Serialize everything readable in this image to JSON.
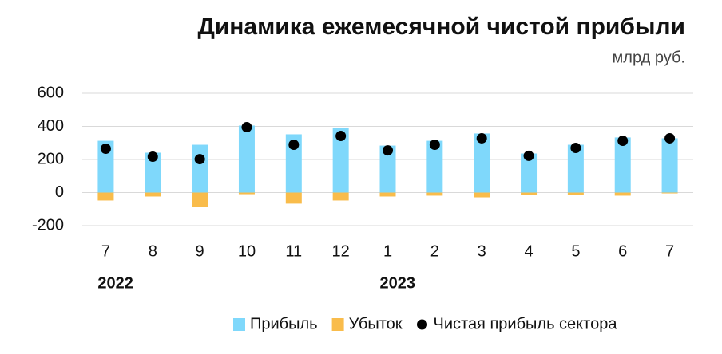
{
  "chart_data": {
    "type": "bar",
    "title": "Динамика ежемесячной чистой прибыли",
    "subtitle": "млрд руб.",
    "categories": [
      "7",
      "8",
      "9",
      "10",
      "11",
      "12",
      "1",
      "2",
      "3",
      "4",
      "5",
      "6",
      "7"
    ],
    "years": [
      "2022",
      null,
      null,
      null,
      null,
      null,
      "2023",
      null,
      null,
      null,
      null,
      null,
      null
    ],
    "series": [
      {
        "name": "Прибыль",
        "color": "#7fd8fb",
        "mark": "bar",
        "values": [
          313,
          241,
          289,
          405,
          352,
          390,
          284,
          313,
          357,
          236,
          289,
          333,
          328
        ]
      },
      {
        "name": "Убыток",
        "color": "#f9bc4b",
        "mark": "bar",
        "values": [
          -48,
          -24,
          -87,
          -10,
          -67,
          -48,
          -24,
          -19,
          -29,
          -14,
          -14,
          -19,
          -5
        ]
      },
      {
        "name": "Чистая прибыль сектора",
        "color": "#000000",
        "mark": "dot",
        "values": [
          265,
          217,
          202,
          395,
          289,
          342,
          255,
          289,
          328,
          222,
          270,
          313,
          328
        ]
      }
    ],
    "ylim": [
      -200,
      600
    ],
    "yticks": [
      -200,
      0,
      200,
      400,
      600
    ],
    "grid": true
  }
}
